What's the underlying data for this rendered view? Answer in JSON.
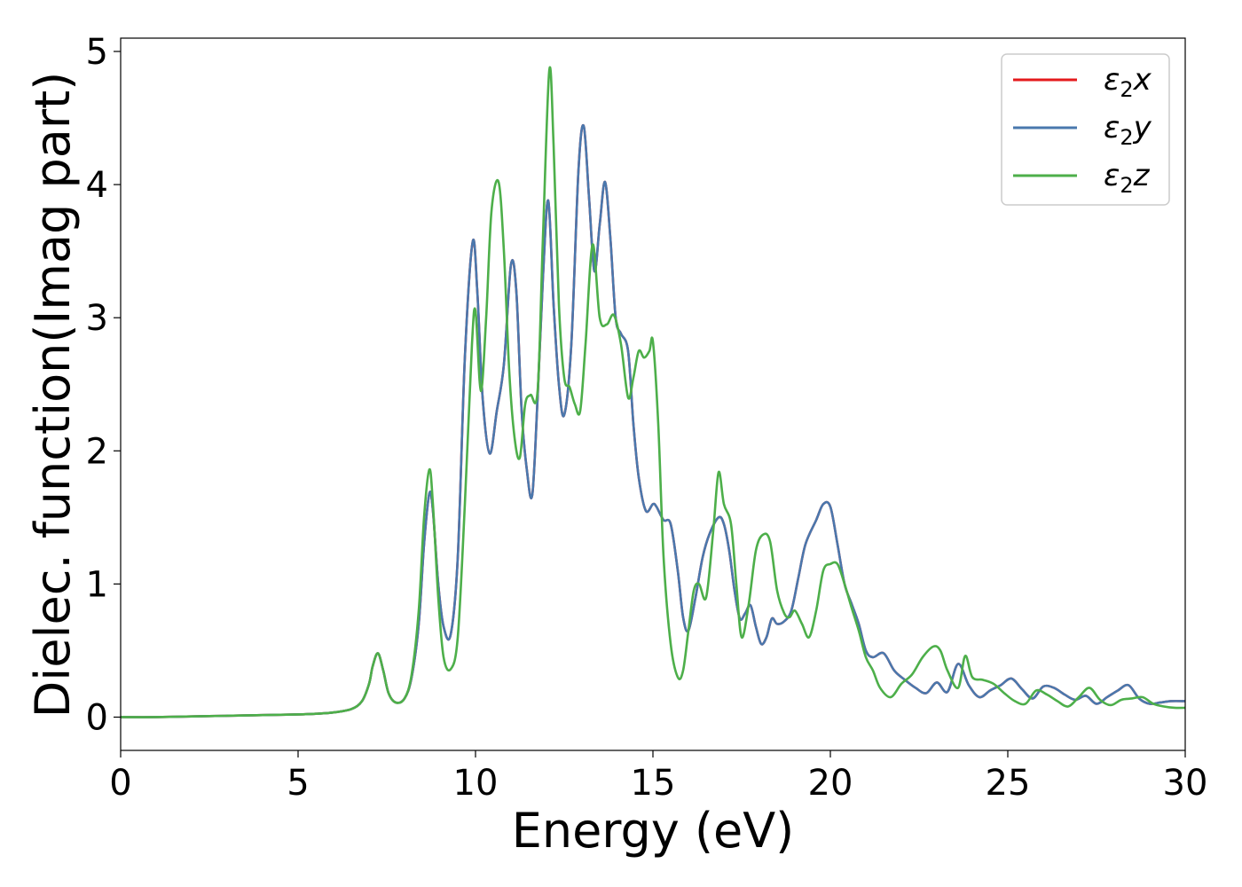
{
  "chart_data": {
    "type": "line",
    "title": "",
    "xlabel": "Energy (eV)",
    "ylabel": "Dielec. function(Imag part)",
    "xlim": [
      0,
      30
    ],
    "ylim": [
      -0.25,
      5.1
    ],
    "xticks": [
      0,
      5,
      10,
      15,
      20,
      25,
      30
    ],
    "xtick_labels": [
      "0",
      "5",
      "10",
      "15",
      "20",
      "25",
      "30"
    ],
    "yticks": [
      0,
      1,
      2,
      3,
      4,
      5
    ],
    "ytick_labels": [
      "0",
      "1",
      "2",
      "3",
      "4",
      "5"
    ],
    "grid": false,
    "legend_position": "top-right",
    "series": [
      {
        "name": "ε₂x",
        "legend_base": "ε",
        "legend_sub": "2",
        "legend_tail": "x",
        "color": "#e41a1c",
        "x": [
          0,
          1,
          2,
          3,
          4,
          5,
          5.5,
          6,
          6.5,
          6.8,
          7.0,
          7.1,
          7.25,
          7.4,
          7.55,
          7.75,
          8.0,
          8.2,
          8.4,
          8.55,
          8.7,
          8.8,
          8.95,
          9.1,
          9.3,
          9.5,
          9.7,
          9.92,
          10.05,
          10.2,
          10.4,
          10.6,
          10.8,
          11.0,
          11.15,
          11.3,
          11.45,
          11.6,
          11.75,
          11.9,
          12.05,
          12.2,
          12.35,
          12.5,
          12.7,
          12.9,
          13.05,
          13.2,
          13.35,
          13.5,
          13.65,
          13.8,
          13.95,
          14.1,
          14.3,
          14.45,
          14.6,
          14.8,
          15.0,
          15.1,
          15.3,
          15.5,
          15.7,
          15.85,
          16.0,
          16.2,
          16.4,
          16.6,
          16.85,
          17.0,
          17.15,
          17.3,
          17.45,
          17.6,
          17.75,
          17.9,
          18.05,
          18.2,
          18.35,
          18.5,
          18.7,
          18.9,
          19.1,
          19.3,
          19.6,
          19.8,
          20.0,
          20.2,
          20.4,
          20.6,
          20.8,
          21.0,
          21.2,
          21.5,
          21.8,
          22.1,
          22.4,
          22.7,
          23.0,
          23.3,
          23.6,
          23.9,
          24.2,
          24.5,
          24.8,
          25.1,
          25.4,
          25.7,
          26.0,
          26.3,
          26.6,
          26.9,
          27.2,
          27.5,
          27.8,
          28.1,
          28.4,
          28.7,
          29.0,
          29.3,
          29.6,
          30
        ],
        "y": [
          0.0,
          0.0,
          0.005,
          0.01,
          0.015,
          0.02,
          0.025,
          0.035,
          0.06,
          0.12,
          0.25,
          0.38,
          0.48,
          0.35,
          0.18,
          0.11,
          0.14,
          0.3,
          0.7,
          1.3,
          1.68,
          1.55,
          1.0,
          0.68,
          0.62,
          1.2,
          2.7,
          3.57,
          3.2,
          2.4,
          1.98,
          2.3,
          2.65,
          3.4,
          3.2,
          2.3,
          1.85,
          1.67,
          2.4,
          3.3,
          3.88,
          3.1,
          2.5,
          2.27,
          2.8,
          4.1,
          4.44,
          3.9,
          3.35,
          3.7,
          4.02,
          3.6,
          3.0,
          2.88,
          2.75,
          2.2,
          1.8,
          1.55,
          1.6,
          1.58,
          1.48,
          1.45,
          1.1,
          0.75,
          0.65,
          0.9,
          1.2,
          1.38,
          1.5,
          1.45,
          1.25,
          0.95,
          0.74,
          0.78,
          0.84,
          0.68,
          0.55,
          0.6,
          0.74,
          0.7,
          0.72,
          0.8,
          1.05,
          1.3,
          1.48,
          1.6,
          1.58,
          1.3,
          1.0,
          0.85,
          0.7,
          0.5,
          0.45,
          0.48,
          0.35,
          0.28,
          0.22,
          0.18,
          0.26,
          0.19,
          0.4,
          0.24,
          0.15,
          0.2,
          0.24,
          0.29,
          0.21,
          0.14,
          0.23,
          0.22,
          0.17,
          0.13,
          0.16,
          0.1,
          0.15,
          0.2,
          0.24,
          0.14,
          0.1,
          0.11,
          0.12,
          0.12
        ]
      },
      {
        "name": "ε₂y",
        "legend_base": "ε",
        "legend_sub": "2",
        "legend_tail": "y",
        "color": "#4a78ad",
        "x": [
          0,
          1,
          2,
          3,
          4,
          5,
          5.5,
          6,
          6.5,
          6.8,
          7.0,
          7.1,
          7.25,
          7.4,
          7.55,
          7.75,
          8.0,
          8.2,
          8.4,
          8.55,
          8.7,
          8.8,
          8.95,
          9.1,
          9.3,
          9.5,
          9.7,
          9.92,
          10.05,
          10.2,
          10.4,
          10.6,
          10.8,
          11.0,
          11.15,
          11.3,
          11.45,
          11.6,
          11.75,
          11.9,
          12.05,
          12.2,
          12.35,
          12.5,
          12.7,
          12.9,
          13.05,
          13.2,
          13.35,
          13.5,
          13.65,
          13.8,
          13.95,
          14.1,
          14.3,
          14.45,
          14.6,
          14.8,
          15.0,
          15.1,
          15.3,
          15.5,
          15.7,
          15.85,
          16.0,
          16.2,
          16.4,
          16.6,
          16.85,
          17.0,
          17.15,
          17.3,
          17.45,
          17.6,
          17.75,
          17.9,
          18.05,
          18.2,
          18.35,
          18.5,
          18.7,
          18.9,
          19.1,
          19.3,
          19.6,
          19.8,
          20.0,
          20.2,
          20.4,
          20.6,
          20.8,
          21.0,
          21.2,
          21.5,
          21.8,
          22.1,
          22.4,
          22.7,
          23.0,
          23.3,
          23.6,
          23.9,
          24.2,
          24.5,
          24.8,
          25.1,
          25.4,
          25.7,
          26.0,
          26.3,
          26.6,
          26.9,
          27.2,
          27.5,
          27.8,
          28.1,
          28.4,
          28.7,
          29.0,
          29.3,
          29.6,
          30
        ],
        "y": [
          0.0,
          0.0,
          0.005,
          0.01,
          0.015,
          0.02,
          0.025,
          0.035,
          0.06,
          0.12,
          0.25,
          0.38,
          0.48,
          0.35,
          0.18,
          0.11,
          0.14,
          0.3,
          0.7,
          1.3,
          1.68,
          1.55,
          1.0,
          0.68,
          0.62,
          1.2,
          2.7,
          3.57,
          3.2,
          2.4,
          1.98,
          2.3,
          2.65,
          3.4,
          3.2,
          2.3,
          1.85,
          1.67,
          2.4,
          3.3,
          3.88,
          3.1,
          2.5,
          2.27,
          2.8,
          4.1,
          4.44,
          3.9,
          3.35,
          3.7,
          4.02,
          3.6,
          3.0,
          2.88,
          2.75,
          2.2,
          1.8,
          1.55,
          1.6,
          1.58,
          1.48,
          1.45,
          1.1,
          0.75,
          0.65,
          0.9,
          1.2,
          1.38,
          1.5,
          1.45,
          1.25,
          0.95,
          0.74,
          0.78,
          0.84,
          0.68,
          0.55,
          0.6,
          0.74,
          0.7,
          0.72,
          0.8,
          1.05,
          1.3,
          1.48,
          1.6,
          1.58,
          1.3,
          1.0,
          0.85,
          0.7,
          0.5,
          0.45,
          0.48,
          0.35,
          0.28,
          0.22,
          0.18,
          0.26,
          0.19,
          0.4,
          0.24,
          0.15,
          0.2,
          0.24,
          0.29,
          0.21,
          0.14,
          0.23,
          0.22,
          0.17,
          0.13,
          0.16,
          0.1,
          0.15,
          0.2,
          0.24,
          0.14,
          0.1,
          0.11,
          0.12,
          0.12
        ]
      },
      {
        "name": "ε₂z",
        "legend_base": "ε",
        "legend_sub": "2",
        "legend_tail": "z",
        "color": "#4daf4a",
        "x": [
          0,
          1,
          2,
          3,
          4,
          5,
          5.5,
          6,
          6.5,
          6.8,
          7.0,
          7.1,
          7.25,
          7.4,
          7.55,
          7.75,
          8.0,
          8.2,
          8.4,
          8.55,
          8.7,
          8.8,
          8.95,
          9.1,
          9.3,
          9.5,
          9.7,
          9.9,
          10.0,
          10.15,
          10.3,
          10.45,
          10.65,
          10.8,
          10.95,
          11.1,
          11.25,
          11.4,
          11.55,
          11.75,
          11.9,
          12.08,
          12.2,
          12.35,
          12.5,
          12.65,
          12.8,
          12.95,
          13.1,
          13.3,
          13.5,
          13.7,
          13.9,
          14.1,
          14.3,
          14.45,
          14.6,
          14.75,
          14.9,
          15.0,
          15.15,
          15.3,
          15.5,
          15.7,
          15.85,
          16.0,
          16.15,
          16.3,
          16.5,
          16.7,
          16.85,
          17.0,
          17.2,
          17.35,
          17.5,
          17.7,
          17.9,
          18.1,
          18.3,
          18.5,
          18.7,
          18.85,
          19.0,
          19.2,
          19.4,
          19.6,
          19.8,
          20.0,
          20.2,
          20.4,
          20.6,
          20.8,
          21.0,
          21.2,
          21.4,
          21.7,
          22.0,
          22.3,
          22.6,
          22.9,
          23.1,
          23.3,
          23.6,
          23.8,
          24.0,
          24.3,
          24.6,
          24.9,
          25.2,
          25.5,
          25.8,
          26.1,
          26.4,
          26.7,
          27.0,
          27.3,
          27.6,
          27.9,
          28.2,
          28.5,
          28.8,
          29.1,
          29.4,
          29.7,
          30
        ],
        "y": [
          0.0,
          0.0,
          0.005,
          0.01,
          0.015,
          0.02,
          0.025,
          0.035,
          0.06,
          0.12,
          0.25,
          0.38,
          0.48,
          0.35,
          0.18,
          0.11,
          0.14,
          0.32,
          0.8,
          1.5,
          1.86,
          1.6,
          0.9,
          0.45,
          0.36,
          0.6,
          1.6,
          2.8,
          3.05,
          2.45,
          3.0,
          3.8,
          4.02,
          3.5,
          2.6,
          2.1,
          1.95,
          2.35,
          2.42,
          2.45,
          3.6,
          4.86,
          4.3,
          3.1,
          2.55,
          2.48,
          2.35,
          2.3,
          2.8,
          3.55,
          3.0,
          2.95,
          3.02,
          2.8,
          2.4,
          2.55,
          2.75,
          2.7,
          2.75,
          2.82,
          2.2,
          1.2,
          0.55,
          0.3,
          0.35,
          0.65,
          0.95,
          1.0,
          0.9,
          1.4,
          1.84,
          1.6,
          1.45,
          1.0,
          0.6,
          0.85,
          1.25,
          1.37,
          1.32,
          0.95,
          0.78,
          0.75,
          0.8,
          0.7,
          0.6,
          0.8,
          1.1,
          1.15,
          1.15,
          1.0,
          0.82,
          0.65,
          0.45,
          0.35,
          0.22,
          0.15,
          0.25,
          0.32,
          0.45,
          0.53,
          0.5,
          0.35,
          0.22,
          0.46,
          0.3,
          0.28,
          0.25,
          0.18,
          0.12,
          0.1,
          0.2,
          0.17,
          0.12,
          0.08,
          0.15,
          0.22,
          0.13,
          0.09,
          0.13,
          0.14,
          0.15,
          0.1,
          0.08,
          0.07,
          0.07
        ]
      }
    ]
  }
}
